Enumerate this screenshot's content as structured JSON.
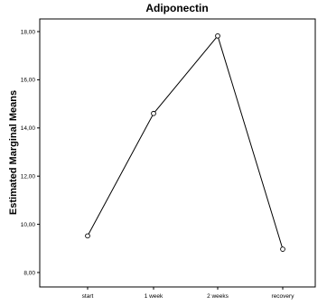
{
  "chart_data": {
    "type": "line",
    "title": "Adiponectin",
    "xlabel": "",
    "ylabel": "Estimated Marginal Means",
    "categories": [
      "start",
      "1 week",
      "2 weeks",
      "recovery"
    ],
    "series": [
      {
        "values": [
          9.52,
          14.6,
          17.82,
          8.97
        ]
      }
    ],
    "ylim": [
      7.5,
      18.6
    ],
    "yticks": [
      8,
      10,
      12,
      14,
      16,
      18
    ],
    "ytick_labels": [
      "8,00",
      "10,00",
      "12,00",
      "14,00",
      "16,00",
      "18,00"
    ],
    "grid": false,
    "marker": "open-circle",
    "line_color": "#000000"
  }
}
